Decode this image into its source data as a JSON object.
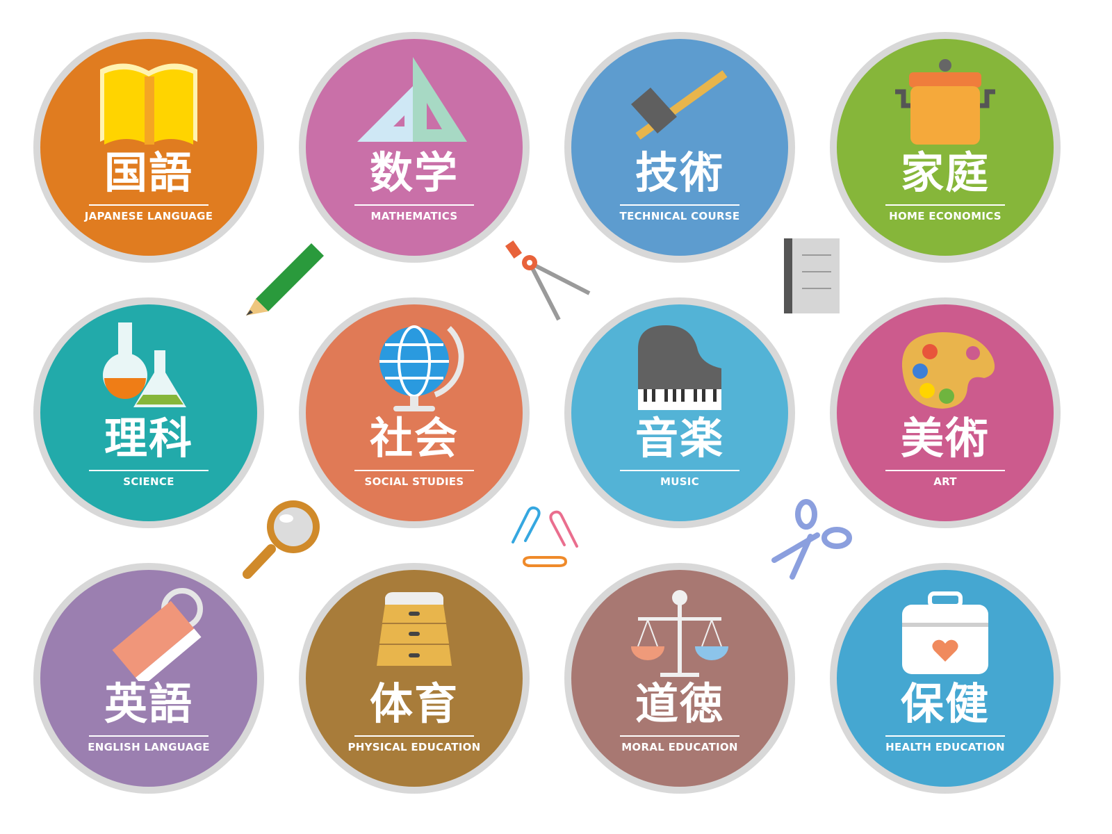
{
  "subjects": [
    {
      "kanji": "国語",
      "english": "JAPANESE LANGUAGE",
      "color": "#e07c20",
      "icon": "book-icon"
    },
    {
      "kanji": "数学",
      "english": "MATHEMATICS",
      "color": "#c970a8",
      "icon": "set-square-icon"
    },
    {
      "kanji": "技術",
      "english": "TECHNICAL COURSE",
      "color": "#5d9ccf",
      "icon": "hammer-icon"
    },
    {
      "kanji": "家庭",
      "english": "HOME ECONOMICS",
      "color": "#86b63a",
      "icon": "pot-icon"
    },
    {
      "kanji": "理科",
      "english": "SCIENCE",
      "color": "#22aaaa",
      "icon": "flask-icon"
    },
    {
      "kanji": "社会",
      "english": "SOCIAL STUDIES",
      "color": "#e07a56",
      "icon": "globe-icon"
    },
    {
      "kanji": "音楽",
      "english": "MUSIC",
      "color": "#53b3d6",
      "icon": "piano-icon"
    },
    {
      "kanji": "美術",
      "english": "ART",
      "color": "#cc5b8d",
      "icon": "palette-icon"
    },
    {
      "kanji": "英語",
      "english": "ENGLISH LANGUAGE",
      "color": "#9b7fb0",
      "icon": "word-card-icon"
    },
    {
      "kanji": "体育",
      "english": "PHYSICAL EDUCATION",
      "color": "#a87c3a",
      "icon": "vaulting-box-icon"
    },
    {
      "kanji": "道徳",
      "english": "MORAL EDUCATION",
      "color": "#a87872",
      "icon": "scales-icon"
    },
    {
      "kanji": "保健",
      "english": "HEALTH EDUCATION",
      "color": "#45a7d1",
      "icon": "first-aid-box-icon"
    }
  ],
  "decorations": [
    "pencil-icon",
    "compass-icon",
    "notebook-icon",
    "magnifier-icon",
    "paperclip-icon",
    "scissors-icon"
  ]
}
